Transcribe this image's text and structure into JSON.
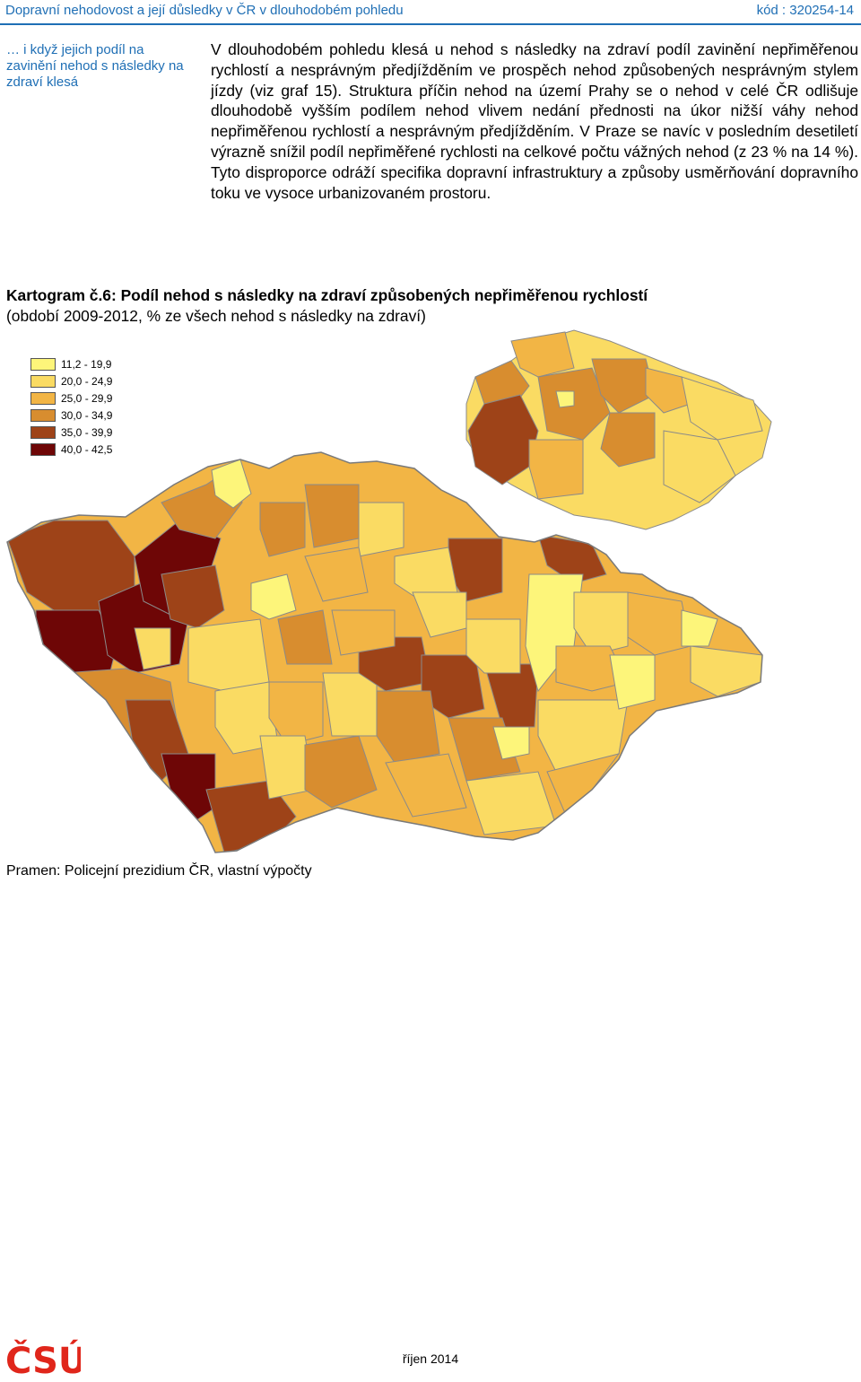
{
  "header": {
    "title": "Dopravní nehodovost a její důsledky v ČR v dlouhodobém pohledu",
    "code": "kód : 320254-14"
  },
  "side_note": "… i když jejich podíl na zavinění nehod s následky na zdraví klesá",
  "paragraph": "V dlouhodobém pohledu klesá u nehod s následky na zdraví podíl zavinění nepřiměřenou rychlostí a nesprávným předjížděním ve prospěch nehod způsobených nesprávným stylem jízdy (viz graf 15). Struktura příčin nehod na území Prahy se o nehod v celé ČR odlišuje dlouhodobě vyšším podílem nehod vlivem nedání přednosti na úkor nižší váhy nehod nepřiměřenou rychlostí a nesprávným předjížděním. V Praze se navíc v posledním desetiletí výrazně snížil podíl nepřiměřené rychlosti na celkové počtu vážných nehod (z 23 % na 14 %). Tyto disproporce odráží specifika dopravní infrastruktury a způsoby usměrňování dopravního toku ve vysoce urbanizovaném prostoru.",
  "map": {
    "title": "Kartogram č.6: Podíl nehod s následky na zdraví způsobených nepřiměřenou rychlostí",
    "subtitle": "(období 2009-2012, % ze všech nehod s následky na zdraví)",
    "legend": [
      {
        "label": "11,2 - 19,9",
        "color": "#fdf57a"
      },
      {
        "label": "20,0 - 24,9",
        "color": "#fadb63"
      },
      {
        "label": "25,0 - 29,9",
        "color": "#f2b545"
      },
      {
        "label": "30,0 - 34,9",
        "color": "#d88d2f"
      },
      {
        "label": "35,0 - 39,9",
        "color": "#9e4318"
      },
      {
        "label": "40,0 - 42,5",
        "color": "#6e0606"
      }
    ],
    "source": "Pramen: Policejní prezidium ČR, vlastní výpočty"
  },
  "footer": {
    "date": "říjen 2014",
    "logo_text": "ČSÚ"
  },
  "colors": {
    "accent": "#1f6fb5",
    "logo": "#e0261b"
  }
}
